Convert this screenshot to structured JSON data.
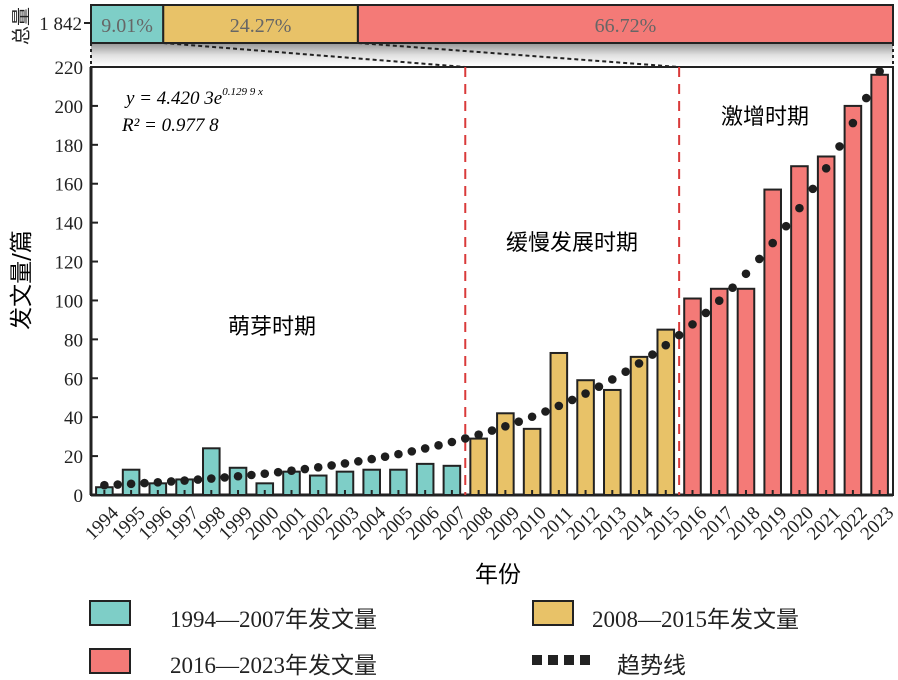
{
  "chart_data": {
    "type": "bar",
    "title": "",
    "xlabel": "年份",
    "ylabel": "发文量/篇",
    "ylim": [
      0,
      220
    ],
    "yticks": [
      0,
      20,
      40,
      60,
      80,
      100,
      120,
      140,
      160,
      180,
      200,
      220
    ],
    "categories": [
      "1994",
      "1995",
      "1996",
      "1997",
      "1998",
      "1999",
      "2000",
      "2001",
      "2002",
      "2003",
      "2004",
      "2005",
      "2006",
      "2007",
      "2008",
      "2009",
      "2010",
      "2011",
      "2012",
      "2013",
      "2014",
      "2015",
      "2016",
      "2017",
      "2018",
      "2019",
      "2020",
      "2021",
      "2022",
      "2023"
    ],
    "values": [
      4,
      13,
      6,
      8,
      24,
      14,
      6,
      12,
      10,
      12,
      13,
      13,
      16,
      15,
      29,
      42,
      34,
      73,
      59,
      54,
      71,
      85,
      101,
      106,
      106,
      157,
      169,
      174,
      200,
      216
    ],
    "periods": [
      {
        "name": "萌芽时期",
        "start": "1994",
        "end": "2007",
        "color": "#7ecec7",
        "legend": "1994—2007年发文量",
        "share": "9.01%"
      },
      {
        "name": "缓慢发展时期",
        "start": "2008",
        "end": "2015",
        "color": "#e8c268",
        "legend": "2008—2015年发文量",
        "share": "24.27%"
      },
      {
        "name": "激增时期",
        "start": "2016",
        "end": "2023",
        "color": "#f47a77",
        "legend": "2016—2023年发文量",
        "share": "66.72%"
      }
    ],
    "trendline": {
      "label": "趋势线",
      "equation": "y = 4.420 3e",
      "exponent": "0.129 9 x",
      "r2": "R² = 0.977 8",
      "a": 4.4203,
      "b": 0.1299
    },
    "total_bar": {
      "label": "总量",
      "value": "1 842",
      "shares": [
        "9.01%",
        "24.27%",
        "66.72%"
      ],
      "fractions": [
        0.0901,
        0.2427,
        0.6672
      ]
    },
    "divider_color": "#d93a3a",
    "legend_placement": "bottom"
  }
}
